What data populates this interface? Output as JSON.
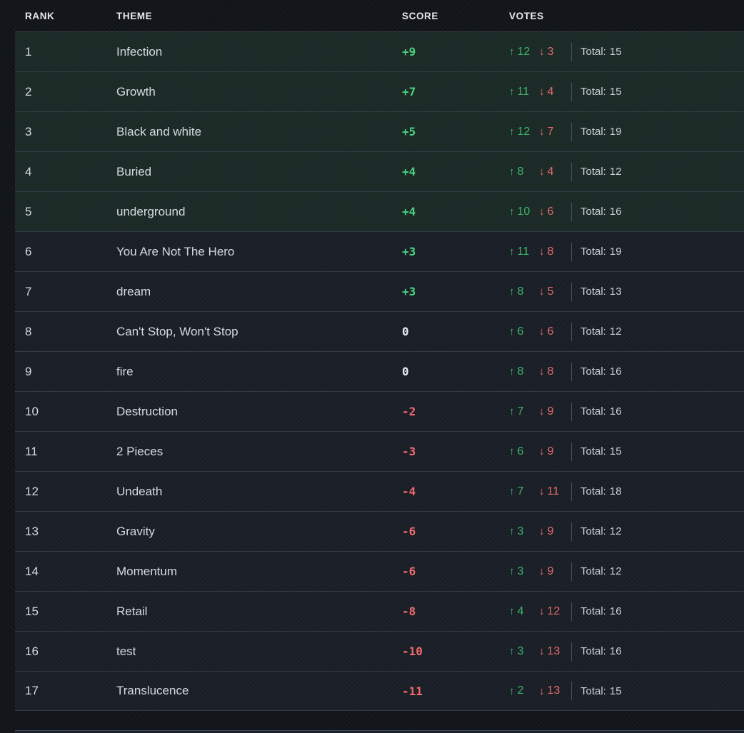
{
  "header": {
    "rank": "RANK",
    "theme": "THEME",
    "score": "SCORE",
    "votes": "VOTES"
  },
  "votes": {
    "total_label": "Total:",
    "up_icon": "↑",
    "down_icon": "↓"
  },
  "colors": {
    "positive_score": "#4dd17e",
    "negative_score": "#f2696c",
    "zero_score": "#e9ebee",
    "upvote": "#3db468",
    "downvote": "#e56a68",
    "highlight_row_bg": "#1b2a26",
    "row_bg": "#1a1f27",
    "page_bg": "#111419"
  },
  "rows": [
    {
      "rank": "1",
      "theme": "Infection",
      "score": "+9",
      "up": "12",
      "down": "3",
      "total": "15",
      "highlighted": true
    },
    {
      "rank": "2",
      "theme": "Growth",
      "score": "+7",
      "up": "11",
      "down": "4",
      "total": "15",
      "highlighted": true
    },
    {
      "rank": "3",
      "theme": "Black and white",
      "score": "+5",
      "up": "12",
      "down": "7",
      "total": "19",
      "highlighted": true
    },
    {
      "rank": "4",
      "theme": "Buried",
      "score": "+4",
      "up": "8",
      "down": "4",
      "total": "12",
      "highlighted": true
    },
    {
      "rank": "5",
      "theme": "underground",
      "score": "+4",
      "up": "10",
      "down": "6",
      "total": "16",
      "highlighted": true
    },
    {
      "rank": "6",
      "theme": "You Are Not The Hero",
      "score": "+3",
      "up": "11",
      "down": "8",
      "total": "19",
      "highlighted": false
    },
    {
      "rank": "7",
      "theme": "dream",
      "score": "+3",
      "up": "8",
      "down": "5",
      "total": "13",
      "highlighted": false
    },
    {
      "rank": "8",
      "theme": "Can't Stop, Won't Stop",
      "score": "0",
      "up": "6",
      "down": "6",
      "total": "12",
      "highlighted": false
    },
    {
      "rank": "9",
      "theme": "fire",
      "score": "0",
      "up": "8",
      "down": "8",
      "total": "16",
      "highlighted": false
    },
    {
      "rank": "10",
      "theme": "Destruction",
      "score": "-2",
      "up": "7",
      "down": "9",
      "total": "16",
      "highlighted": false
    },
    {
      "rank": "11",
      "theme": "2 Pieces",
      "score": "-3",
      "up": "6",
      "down": "9",
      "total": "15",
      "highlighted": false
    },
    {
      "rank": "12",
      "theme": "Undeath",
      "score": "-4",
      "up": "7",
      "down": "11",
      "total": "18",
      "highlighted": false
    },
    {
      "rank": "13",
      "theme": "Gravity",
      "score": "-6",
      "up": "3",
      "down": "9",
      "total": "12",
      "highlighted": false
    },
    {
      "rank": "14",
      "theme": "Momentum",
      "score": "-6",
      "up": "3",
      "down": "9",
      "total": "12",
      "highlighted": false
    },
    {
      "rank": "15",
      "theme": "Retail",
      "score": "-8",
      "up": "4",
      "down": "12",
      "total": "16",
      "highlighted": false
    },
    {
      "rank": "16",
      "theme": "test",
      "score": "-10",
      "up": "3",
      "down": "13",
      "total": "16",
      "highlighted": false
    },
    {
      "rank": "17",
      "theme": "Translucence",
      "score": "-11",
      "up": "2",
      "down": "13",
      "total": "15",
      "highlighted": false
    }
  ]
}
